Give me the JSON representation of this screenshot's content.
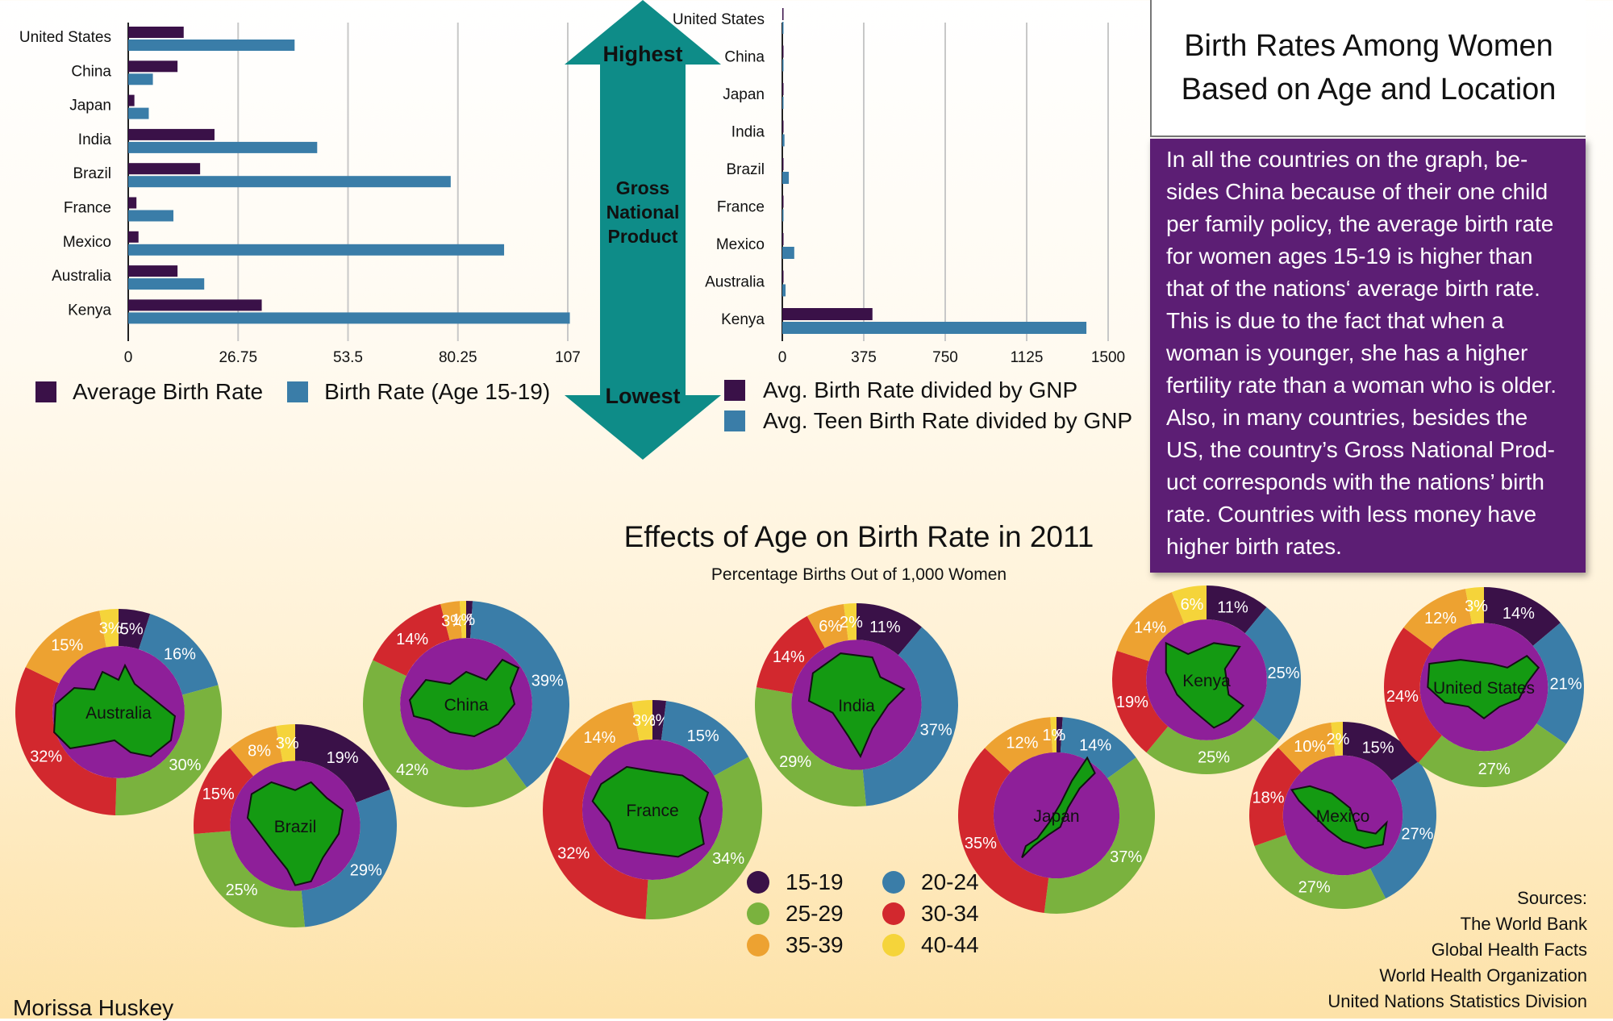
{
  "title": "Birth Rates Among Women Based on Age and Location",
  "description": "In all the countries on the graph, be- sides China because of their one child per family policy, the average birth rate for women ages 15-19 is higher than that of the nations‘ average birth rate. This is due to the fact that when a woman is younger, she has a higher fertility rate than a woman who is older. Also, in many countries, besides the US, the country’s Gross National Prod- uct corresponds with the nations’ birth rate. Countries with less money have higher birth rates.",
  "arrow": {
    "top_label": "Highest",
    "middle_label": "Gross National Product",
    "bottom_label": "Lowest"
  },
  "donut_section": {
    "title": "Effects of Age on Birth Rate in 2011",
    "subtitle": "Percentage Births Out of 1,000 Women"
  },
  "sources": [
    "Sources:",
    "The World Bank",
    "Global Health Facts",
    "World Health Organization",
    "United Nations Statistics Division"
  ],
  "author": "Morissa Huskey",
  "colors": {
    "avg": "#3a1148",
    "teen": "#3a7da8",
    "teal": "#0e8c88",
    "purple_box": "#5c1e74",
    "donut_center": "#8e1f99",
    "map_green": "#149a12",
    "age_15_19": "#3a1148",
    "age_20_24": "#3a7da8",
    "age_25_29": "#7ab23e",
    "age_30_34": "#d2282e",
    "age_35_39": "#eda231",
    "age_40_44": "#f5d43a"
  },
  "chart_data": [
    {
      "type": "bar",
      "orientation": "horizontal",
      "categories": [
        "United States",
        "China",
        "Japan",
        "India",
        "Brazil",
        "France",
        "Mexico",
        "Australia",
        "Kenya"
      ],
      "series": [
        {
          "name": "Average Birth Rate",
          "values": [
            13.5,
            12,
            1.5,
            21,
            17.5,
            2,
            2.5,
            12,
            32.5
          ]
        },
        {
          "name": "Birth Rate (Age 15-19)",
          "values": [
            40.5,
            6,
            5,
            46,
            78.5,
            11,
            91.5,
            18.5,
            107.5
          ]
        }
      ],
      "xticks": [
        "0",
        "26.75",
        "53.5",
        "80.25",
        "107"
      ],
      "xlim": [
        0,
        107
      ],
      "grid": true,
      "legend": "bottom"
    },
    {
      "type": "bar",
      "orientation": "horizontal",
      "categories": [
        "United States",
        "China",
        "Japan",
        "India",
        "Brazil",
        "France",
        "Mexico",
        "Australia",
        "Kenya"
      ],
      "series": [
        {
          "name": "Avg. Birth Rate divided by GNP",
          "values": [
            0.3,
            0.6,
            0.1,
            2,
            2,
            0.2,
            1,
            2,
            415
          ]
        },
        {
          "name": "Avg. Teen Birth Rate divided by GNP",
          "values": [
            0.8,
            0.3,
            0.3,
            10,
            30,
            1,
            55,
            15,
            1400
          ]
        }
      ],
      "xticks": [
        "0",
        "375",
        "750",
        "1125",
        "1500"
      ],
      "xlim": [
        0,
        1500
      ],
      "grid": true,
      "legend": "bottom"
    },
    {
      "type": "pie",
      "subtype": "donut",
      "categories": [
        "15-19",
        "20-24",
        "25-29",
        "30-34",
        "35-39",
        "40-44"
      ],
      "series": [
        {
          "name": "Australia",
          "values": [
            5,
            16,
            30,
            32,
            15,
            3
          ]
        },
        {
          "name": "Brazil",
          "values": [
            19,
            29,
            25,
            15,
            8,
            3
          ]
        },
        {
          "name": "China",
          "values": [
            1,
            39,
            42,
            14,
            3,
            1
          ]
        },
        {
          "name": "France",
          "values": [
            2,
            15,
            34,
            32,
            14,
            3
          ]
        },
        {
          "name": "India",
          "values": [
            11,
            37,
            29,
            14,
            6,
            2
          ]
        },
        {
          "name": "Japan",
          "values": [
            1,
            14,
            37,
            35,
            12,
            1
          ]
        },
        {
          "name": "Kenya",
          "values": [
            11,
            25,
            25,
            19,
            14,
            6
          ]
        },
        {
          "name": "Mexico",
          "values": [
            15,
            27,
            27,
            18,
            10,
            2
          ]
        },
        {
          "name": "United States",
          "values": [
            14,
            21,
            27,
            24,
            12,
            3
          ]
        }
      ],
      "legend": "bottom-center"
    }
  ]
}
